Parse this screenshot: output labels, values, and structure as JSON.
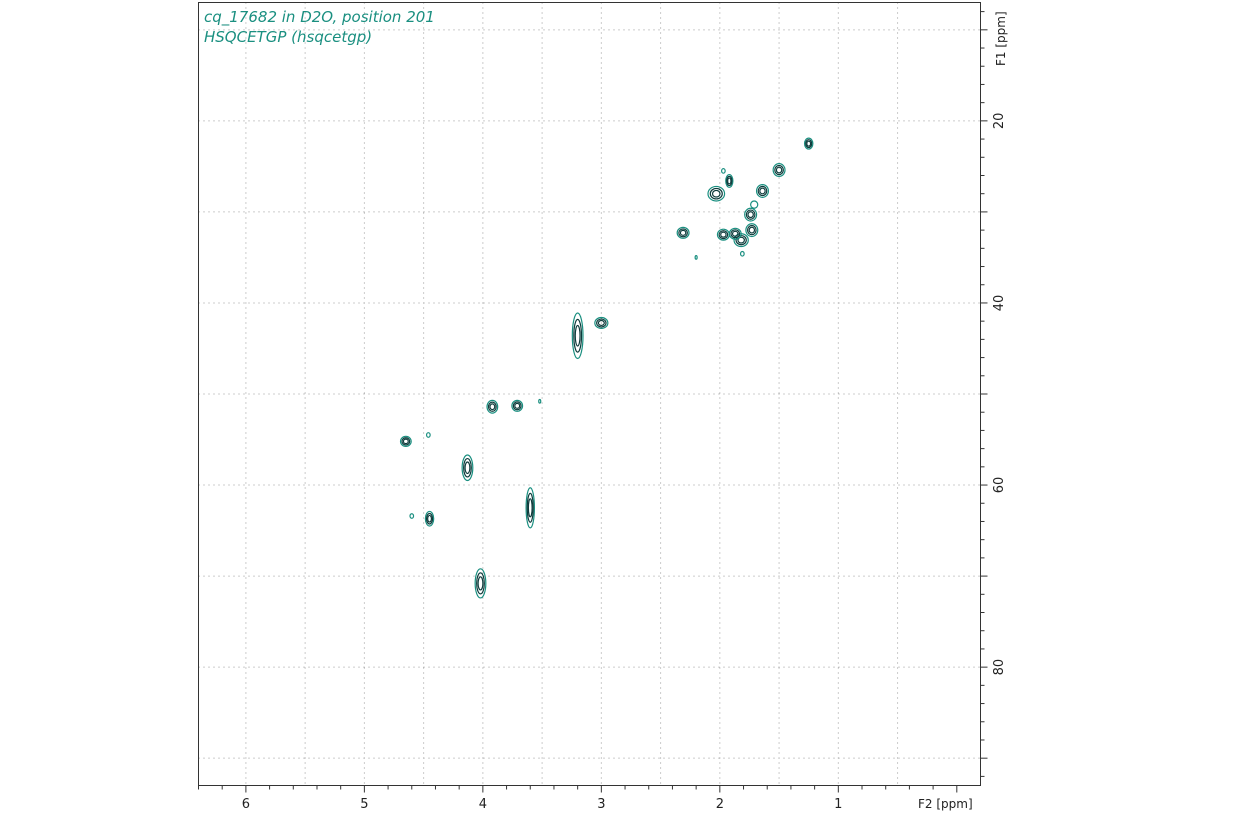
{
  "chart_data": {
    "type": "scatter",
    "subtype": "2D NMR contour plot",
    "title_lines": [
      "cq_17682 in D2O, position 201",
      "HSQCETGP (hsqcetgp)"
    ],
    "x_axis": {
      "label": "F2 [ppm]",
      "range": [
        6.4,
        -0.2
      ],
      "reversed": true,
      "ticks": [
        6,
        5,
        4,
        3,
        2,
        1
      ],
      "tick_labels": [
        "6",
        "5",
        "4",
        "3",
        "2",
        "1"
      ]
    },
    "y_axis": {
      "label": "F1 [ppm]",
      "range": [
        7,
        93
      ],
      "reversed": true,
      "position": "right",
      "ticks": [
        20,
        40,
        60,
        80
      ],
      "tick_labels": [
        "20",
        "40",
        "60",
        "80"
      ],
      "gridlines": [
        10,
        20,
        30,
        40,
        50,
        60,
        70,
        80,
        90
      ]
    },
    "grid": true,
    "grid_style": "dotted",
    "colors": {
      "contour_dark": "#0d3b3b",
      "contour_light": "#1a8f80",
      "grid": "#999999",
      "title": "#1a8f80"
    },
    "peaks": [
      {
        "x": 1.25,
        "y": 22.5,
        "w": 0.035,
        "h": 0.6,
        "s": 1.0
      },
      {
        "x": 1.5,
        "y": 25.4,
        "w": 0.05,
        "h": 0.7,
        "s": 1.0
      },
      {
        "x": 1.64,
        "y": 27.7,
        "w": 0.05,
        "h": 0.7,
        "s": 1.0
      },
      {
        "x": 1.71,
        "y": 29.2,
        "w": 0.03,
        "h": 0.4,
        "s": 0.5
      },
      {
        "x": 1.74,
        "y": 30.3,
        "w": 0.05,
        "h": 0.7,
        "s": 1.0
      },
      {
        "x": 1.73,
        "y": 32.0,
        "w": 0.05,
        "h": 0.7,
        "s": 1.0
      },
      {
        "x": 1.82,
        "y": 33.1,
        "w": 0.06,
        "h": 0.7,
        "s": 1.0
      },
      {
        "x": 1.87,
        "y": 32.4,
        "w": 0.05,
        "h": 0.6,
        "s": 1.0
      },
      {
        "x": 1.97,
        "y": 32.5,
        "w": 0.05,
        "h": 0.6,
        "s": 1.0
      },
      {
        "x": 1.81,
        "y": 34.6,
        "w": 0.015,
        "h": 0.25,
        "s": 0.4
      },
      {
        "x": 1.92,
        "y": 26.6,
        "w": 0.03,
        "h": 0.7,
        "s": 1.0
      },
      {
        "x": 1.97,
        "y": 25.5,
        "w": 0.015,
        "h": 0.25,
        "s": 0.4
      },
      {
        "x": 2.03,
        "y": 28.0,
        "w": 0.07,
        "h": 0.8,
        "s": 1.0
      },
      {
        "x": 2.31,
        "y": 32.3,
        "w": 0.05,
        "h": 0.6,
        "s": 1.0
      },
      {
        "x": 2.2,
        "y": 35.0,
        "w": 0.008,
        "h": 0.2,
        "s": 0.3
      },
      {
        "x": 3.0,
        "y": 42.2,
        "w": 0.055,
        "h": 0.6,
        "s": 1.0
      },
      {
        "x": 3.2,
        "y": 43.6,
        "w": 0.045,
        "h": 2.5,
        "s": 1.0
      },
      {
        "x": 3.71,
        "y": 51.3,
        "w": 0.045,
        "h": 0.6,
        "s": 1.0
      },
      {
        "x": 3.52,
        "y": 50.8,
        "w": 0.008,
        "h": 0.2,
        "s": 0.3
      },
      {
        "x": 3.92,
        "y": 51.4,
        "w": 0.045,
        "h": 0.7,
        "s": 1.0
      },
      {
        "x": 4.13,
        "y": 58.1,
        "w": 0.045,
        "h": 1.4,
        "s": 1.0
      },
      {
        "x": 4.45,
        "y": 63.7,
        "w": 0.035,
        "h": 0.8,
        "s": 1.0
      },
      {
        "x": 4.65,
        "y": 55.2,
        "w": 0.045,
        "h": 0.55,
        "s": 1.0
      },
      {
        "x": 4.46,
        "y": 54.5,
        "w": 0.015,
        "h": 0.25,
        "s": 0.4
      },
      {
        "x": 4.6,
        "y": 63.4,
        "w": 0.015,
        "h": 0.25,
        "s": 0.4
      },
      {
        "x": 3.6,
        "y": 62.5,
        "w": 0.035,
        "h": 2.2,
        "s": 1.0
      },
      {
        "x": 4.02,
        "y": 70.8,
        "w": 0.045,
        "h": 1.6,
        "s": 1.0
      }
    ]
  }
}
